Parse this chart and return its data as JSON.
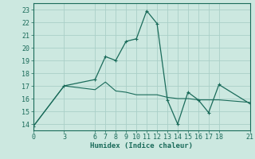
{
  "xlabel": "Humidex (Indice chaleur)",
  "background_color": "#cce8e0",
  "line_color": "#1a6b5a",
  "grid_color": "#aacfc8",
  "xlim": [
    0,
    21
  ],
  "ylim": [
    13.5,
    23.5
  ],
  "yticks": [
    14,
    15,
    16,
    17,
    18,
    19,
    20,
    21,
    22,
    23
  ],
  "xticks": [
    0,
    3,
    6,
    7,
    8,
    9,
    10,
    11,
    12,
    13,
    14,
    15,
    16,
    17,
    18,
    21
  ],
  "xtick_labels": [
    "0",
    "3",
    "6",
    "7",
    "8",
    "9",
    "10",
    "11",
    "12",
    "13",
    "14",
    "15",
    "16",
    "17",
    "18",
    "21"
  ],
  "line1_x": [
    0,
    3,
    6,
    7,
    8,
    9,
    10,
    11,
    12,
    13,
    14,
    15,
    16,
    17,
    18,
    21
  ],
  "line1_y": [
    13.8,
    17.0,
    17.5,
    19.3,
    19.0,
    20.5,
    20.7,
    22.9,
    21.9,
    15.9,
    14.0,
    16.5,
    15.9,
    14.9,
    17.1,
    15.6
  ],
  "line2_x": [
    0,
    3,
    6,
    7,
    8,
    9,
    10,
    11,
    12,
    13,
    14,
    15,
    16,
    17,
    18,
    21
  ],
  "line2_y": [
    13.8,
    17.0,
    16.7,
    17.3,
    16.6,
    16.5,
    16.3,
    16.3,
    16.3,
    16.1,
    16.0,
    16.0,
    15.9,
    15.9,
    15.9,
    15.7
  ]
}
